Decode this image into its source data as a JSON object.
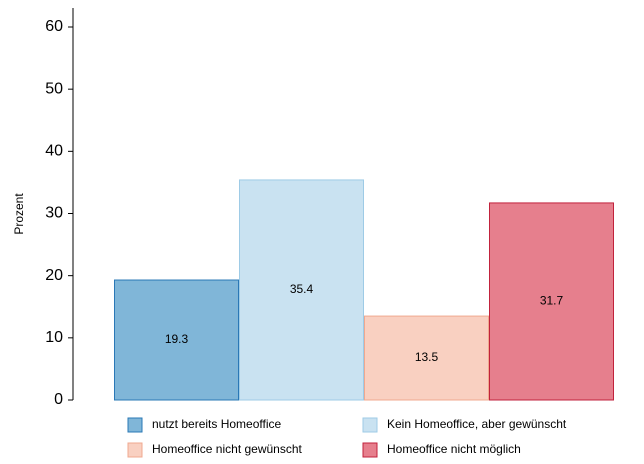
{
  "chart_data": {
    "type": "bar",
    "ylabel": "Prozent",
    "series": [
      {
        "name": "nutzt bereits Homeoffice",
        "color": "#80b6d8",
        "edge_color": "#2a78b6",
        "values": [
          19.3
        ]
      },
      {
        "name": "Kein Homeoffice, aber gewünscht",
        "color": "#c9e2f1",
        "edge_color": "#9ecbe6",
        "values": [
          35.4
        ]
      },
      {
        "name": "Homeoffice nicht gewünscht",
        "color": "#f9d0c1",
        "edge_color": "#f0a88f",
        "values": [
          13.5
        ]
      },
      {
        "name": "Homeoffice nicht möglich",
        "color": "#e67f8d",
        "edge_color": "#c1223c",
        "values": [
          31.7
        ]
      }
    ],
    "ylim": [
      0,
      60
    ],
    "yticks": [
      0,
      10,
      20,
      30,
      40,
      50,
      60
    ],
    "legend": "bottom",
    "data_labels": true
  }
}
